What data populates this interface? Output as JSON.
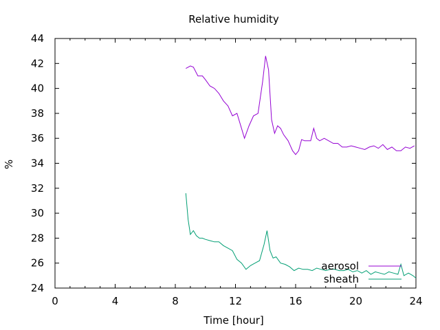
{
  "chart_data": {
    "type": "line",
    "title": "Relative humidity",
    "xlabel": "Time [hour]",
    "ylabel": "%",
    "xlim": [
      0,
      24
    ],
    "ylim": [
      24,
      44
    ],
    "xticks": [
      0,
      4,
      8,
      12,
      16,
      20,
      24
    ],
    "yticks": [
      24,
      26,
      28,
      30,
      32,
      34,
      36,
      38,
      40,
      42,
      44
    ],
    "grid": false,
    "legend_position": "bottom-right inside",
    "series": [
      {
        "name": "aerosol",
        "color": "#9400d3",
        "x": [
          8.7,
          9.0,
          9.2,
          9.5,
          9.8,
          10.0,
          10.3,
          10.6,
          10.9,
          11.2,
          11.5,
          11.8,
          12.1,
          12.4,
          12.6,
          12.9,
          13.2,
          13.5,
          13.8,
          14.0,
          14.2,
          14.4,
          14.6,
          14.8,
          15.0,
          15.2,
          15.5,
          15.8,
          16.0,
          16.2,
          16.4,
          16.6,
          16.8,
          17.0,
          17.2,
          17.4,
          17.6,
          17.9,
          18.2,
          18.5,
          18.8,
          19.1,
          19.4,
          19.7,
          20.0,
          20.3,
          20.6,
          20.9,
          21.2,
          21.5,
          21.8,
          22.1,
          22.4,
          22.7,
          23.0,
          23.3,
          23.6,
          23.9
        ],
        "y": [
          41.6,
          41.8,
          41.7,
          41.0,
          41.0,
          40.7,
          40.2,
          40.0,
          39.6,
          39.0,
          38.6,
          37.8,
          38.0,
          36.8,
          36.0,
          37.0,
          37.8,
          38.0,
          40.5,
          42.6,
          41.5,
          37.5,
          36.4,
          37.0,
          36.8,
          36.3,
          35.8,
          35.0,
          34.7,
          35.0,
          35.9,
          35.8,
          35.8,
          35.8,
          36.8,
          36.0,
          35.8,
          36.0,
          35.8,
          35.6,
          35.6,
          35.3,
          35.3,
          35.4,
          35.3,
          35.2,
          35.1,
          35.3,
          35.4,
          35.2,
          35.5,
          35.1,
          35.3,
          35.0,
          35.0,
          35.3,
          35.2,
          35.4
        ]
      },
      {
        "name": "sheath",
        "color": "#009e73",
        "x": [
          8.7,
          8.85,
          9.0,
          9.2,
          9.4,
          9.6,
          9.8,
          10.0,
          10.3,
          10.6,
          10.9,
          11.2,
          11.5,
          11.8,
          12.1,
          12.4,
          12.7,
          13.0,
          13.3,
          13.6,
          13.9,
          14.1,
          14.3,
          14.5,
          14.7,
          15.0,
          15.3,
          15.6,
          15.9,
          16.2,
          16.5,
          16.8,
          17.1,
          17.4,
          17.7,
          18.0,
          18.3,
          18.6,
          18.9,
          19.2,
          19.5,
          19.8,
          20.1,
          20.4,
          20.7,
          21.0,
          21.3,
          21.6,
          21.9,
          22.2,
          22.5,
          22.8,
          23.0,
          23.2,
          23.5,
          23.8,
          24.0
        ],
        "y": [
          31.6,
          29.5,
          28.3,
          28.6,
          28.2,
          28.0,
          28.0,
          27.9,
          27.8,
          27.7,
          27.7,
          27.4,
          27.2,
          27.0,
          26.3,
          26.0,
          25.5,
          25.8,
          26.0,
          26.2,
          27.5,
          28.6,
          27.0,
          26.4,
          26.5,
          26.0,
          25.9,
          25.7,
          25.4,
          25.6,
          25.5,
          25.5,
          25.4,
          25.6,
          25.5,
          25.4,
          25.5,
          25.5,
          25.4,
          25.4,
          25.5,
          25.3,
          25.4,
          25.2,
          25.4,
          25.1,
          25.3,
          25.2,
          25.1,
          25.3,
          25.2,
          25.1,
          25.9,
          25.0,
          25.2,
          25.0,
          24.8
        ]
      }
    ]
  }
}
